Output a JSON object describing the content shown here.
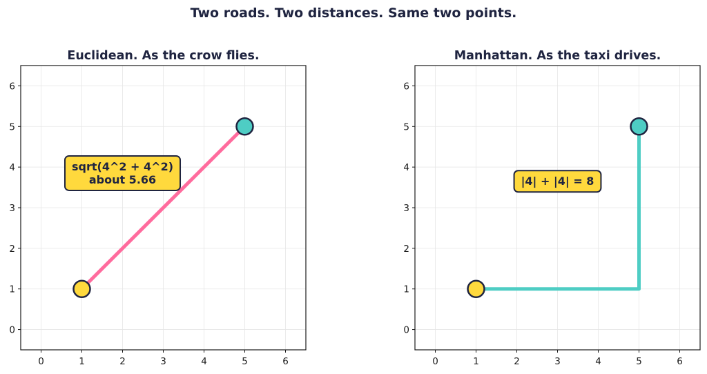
{
  "title": "Two roads. Two distances. Same two points.",
  "colors": {
    "ink": "#1f2440",
    "pink": "#ff6b9d",
    "teal": "#4ecdc4",
    "yellow": "#ffd93d",
    "grid": "#e6e6e6"
  },
  "chart_data": [
    {
      "type": "line",
      "title": "Euclidean. As the crow flies.",
      "xlim": [
        -0.5,
        6.5
      ],
      "ylim": [
        -0.5,
        6.5
      ],
      "xticks": [
        0,
        1,
        2,
        3,
        4,
        5,
        6
      ],
      "yticks": [
        0,
        1,
        2,
        3,
        4,
        5,
        6
      ],
      "grid": true,
      "path": [
        [
          1,
          1
        ],
        [
          5,
          5
        ]
      ],
      "path_color": "pink",
      "points": [
        {
          "x": 1,
          "y": 1,
          "color": "yellow"
        },
        {
          "x": 5,
          "y": 5,
          "color": "teal"
        }
      ],
      "annotation": {
        "lines": [
          "sqrt(4^2 + 4^2)",
          "about 5.66"
        ],
        "x": 2.0,
        "y": 3.85
      }
    },
    {
      "type": "line",
      "title": "Manhattan. As the taxi drives.",
      "xlim": [
        -0.5,
        6.5
      ],
      "ylim": [
        -0.5,
        6.5
      ],
      "xticks": [
        0,
        1,
        2,
        3,
        4,
        5,
        6
      ],
      "yticks": [
        0,
        1,
        2,
        3,
        4,
        5,
        6
      ],
      "grid": true,
      "path": [
        [
          1,
          1
        ],
        [
          5,
          1
        ],
        [
          5,
          5
        ]
      ],
      "path_color": "teal",
      "points": [
        {
          "x": 1,
          "y": 1,
          "color": "yellow"
        },
        {
          "x": 5,
          "y": 5,
          "color": "teal"
        }
      ],
      "annotation": {
        "lines": [
          "|4| + |4| = 8"
        ],
        "x": 3.0,
        "y": 3.65
      }
    }
  ]
}
